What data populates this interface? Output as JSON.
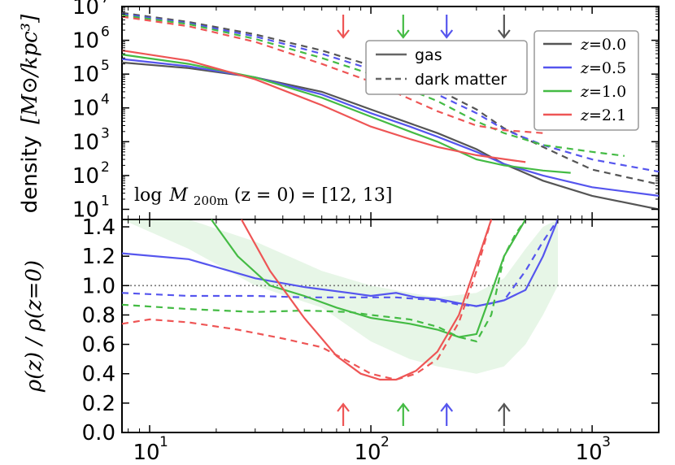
{
  "chart_data": [
    {
      "type": "line",
      "panel": "top",
      "ylabel_prefix": "density",
      "ylabel_unit": "[M⊙/kpc³]",
      "xscale": "log",
      "yscale": "log",
      "xlim": [
        7.5,
        2000
      ],
      "ylim": [
        5,
        10000000
      ],
      "yticks": [
        {
          "value": 10,
          "base": "10",
          "exp": "1"
        },
        {
          "value": 100,
          "base": "10",
          "exp": "2"
        },
        {
          "value": 1000,
          "base": "10",
          "exp": "3"
        },
        {
          "value": 10000,
          "base": "10",
          "exp": "4"
        },
        {
          "value": 100000,
          "base": "10",
          "exp": "5"
        },
        {
          "value": 1000000,
          "base": "10",
          "exp": "6"
        },
        {
          "value": 10000000,
          "base": "10",
          "exp": "7"
        }
      ],
      "annotation": "log M200m(z=0) = [12,13]",
      "annotation_parts": {
        "pre": "log",
        "M": "M",
        "sub": "200m",
        "post": "(z = 0) = [12, 13]"
      },
      "style_legend": [
        {
          "label": "gas",
          "style": "solid"
        },
        {
          "label": "dark matter",
          "style": "dashed"
        }
      ],
      "series": [
        {
          "name": "z=0.0 gas",
          "color": "#555555",
          "style": "solid",
          "x": [
            7.5,
            15,
            30,
            60,
            100,
            150,
            200,
            300,
            400,
            600,
            1000,
            2000
          ],
          "y": [
            220000,
            150000,
            80000,
            30000,
            9000,
            3500,
            1800,
            600,
            220,
            70,
            25,
            10
          ]
        },
        {
          "name": "z=0.5 gas",
          "color": "#5555ee",
          "style": "solid",
          "x": [
            7.5,
            15,
            30,
            60,
            100,
            150,
            200,
            300,
            400,
            600,
            1000,
            2000
          ],
          "y": [
            280000,
            170000,
            80000,
            25000,
            7000,
            2800,
            1400,
            500,
            220,
            100,
            45,
            25
          ]
        },
        {
          "name": "z=1.0 gas",
          "color": "#44bb44",
          "style": "solid",
          "x": [
            7.5,
            15,
            30,
            60,
            100,
            150,
            200,
            300,
            400,
            600,
            800
          ],
          "y": [
            380000,
            200000,
            80000,
            20000,
            5500,
            2000,
            1000,
            300,
            200,
            140,
            120
          ]
        },
        {
          "name": "z=2.1 gas",
          "color": "#ee5555",
          "style": "solid",
          "x": [
            7.5,
            15,
            30,
            60,
            100,
            150,
            200,
            300,
            500
          ],
          "y": [
            500000,
            250000,
            70000,
            12000,
            2800,
            1200,
            700,
            400,
            250
          ]
        },
        {
          "name": "z=0.0 dark matter",
          "color": "#555555",
          "style": "dashed",
          "x": [
            7.5,
            15,
            30,
            60,
            100,
            200,
            300,
            400,
            600,
            1000,
            2000
          ],
          "y": [
            6500000,
            3500000,
            1500000,
            500000,
            180000,
            35000,
            9000,
            2500,
            700,
            150,
            55
          ]
        },
        {
          "name": "z=0.5 dark matter",
          "color": "#5555ee",
          "style": "dashed",
          "x": [
            7.5,
            15,
            30,
            60,
            100,
            200,
            300,
            400,
            600,
            1000,
            2000
          ],
          "y": [
            6000000,
            3200000,
            1300000,
            400000,
            140000,
            25000,
            7000,
            2300,
            800,
            300,
            130
          ]
        },
        {
          "name": "z=1.0 dark matter",
          "color": "#44bb44",
          "style": "dashed",
          "x": [
            7.5,
            15,
            30,
            60,
            100,
            200,
            300,
            400,
            600,
            1000,
            1400
          ],
          "y": [
            5500000,
            3000000,
            1100000,
            300000,
            100000,
            16000,
            4000,
            1800,
            800,
            500,
            380
          ]
        },
        {
          "name": "z=2.1 dark matter",
          "color": "#ee5555",
          "style": "dashed",
          "x": [
            7.5,
            15,
            30,
            60,
            100,
            200,
            300,
            400,
            600
          ],
          "y": [
            5000000,
            2600000,
            900000,
            200000,
            60000,
            8000,
            3000,
            2200,
            1800
          ]
        }
      ],
      "arrows": [
        {
          "color": "#ee5555",
          "x": 75
        },
        {
          "color": "#44bb44",
          "x": 140
        },
        {
          "color": "#5555ee",
          "x": 220
        },
        {
          "color": "#555555",
          "x": 400
        }
      ],
      "legend": [
        {
          "label_var": "z",
          "label_val": "0.0",
          "color": "#555555"
        },
        {
          "label_var": "z",
          "label_val": "0.5",
          "color": "#5555ee"
        },
        {
          "label_var": "z",
          "label_val": "1.0",
          "color": "#44bb44"
        },
        {
          "label_var": "z",
          "label_val": "2.1",
          "color": "#ee5555"
        }
      ]
    },
    {
      "type": "line",
      "panel": "bottom",
      "ylabel": "ρ(z) / ρ(z=0)",
      "xscale": "log",
      "xlim": [
        7.5,
        2000
      ],
      "ylim": [
        0.0,
        1.45
      ],
      "yticks": [
        "0.0",
        "0.2",
        "0.4",
        "0.6",
        "0.8",
        "1.0",
        "1.2",
        "1.4"
      ],
      "xticks": [
        {
          "value": 10,
          "base": "10",
          "exp": "1"
        },
        {
          "value": 100,
          "base": "10",
          "exp": "2"
        },
        {
          "value": 1000,
          "base": "10",
          "exp": "3"
        }
      ],
      "reference_line": 1.0,
      "band": {
        "color": "#44bb44",
        "x": [
          7.5,
          15,
          30,
          60,
          100,
          150,
          200,
          300,
          400,
          500,
          600,
          700
        ],
        "lower": [
          1.45,
          1.25,
          1.0,
          0.85,
          0.62,
          0.5,
          0.45,
          0.4,
          0.45,
          0.6,
          0.8,
          1.0
        ],
        "upper": [
          1.45,
          1.45,
          1.3,
          1.1,
          1.0,
          0.95,
          0.92,
          0.95,
          1.05,
          1.25,
          1.4,
          1.45
        ]
      },
      "series": [
        {
          "name": "z=0.5 gas",
          "color": "#5555ee",
          "style": "solid",
          "x": [
            7.5,
            15,
            30,
            50,
            80,
            100,
            130,
            160,
            200,
            250,
            300,
            350,
            400,
            500,
            600,
            700
          ],
          "y": [
            1.22,
            1.18,
            1.05,
            0.99,
            0.95,
            0.93,
            0.95,
            0.92,
            0.91,
            0.88,
            0.86,
            0.88,
            0.9,
            0.97,
            1.2,
            1.45
          ]
        },
        {
          "name": "z=0.5 dark matter",
          "color": "#5555ee",
          "style": "dashed",
          "x": [
            7.5,
            15,
            30,
            50,
            80,
            100,
            130,
            160,
            200,
            250,
            300,
            350,
            400,
            500,
            600,
            700
          ],
          "y": [
            0.95,
            0.93,
            0.93,
            0.92,
            0.92,
            0.92,
            0.92,
            0.91,
            0.9,
            0.87,
            0.86,
            0.88,
            0.9,
            1.1,
            1.3,
            1.45
          ]
        },
        {
          "name": "z=1.0 gas",
          "color": "#44bb44",
          "style": "solid",
          "x": [
            19,
            25,
            35,
            50,
            70,
            100,
            150,
            200,
            250,
            300,
            350,
            400,
            500
          ],
          "y": [
            1.45,
            1.2,
            1.0,
            0.93,
            0.85,
            0.78,
            0.74,
            0.7,
            0.65,
            0.67,
            0.95,
            1.2,
            1.45
          ]
        },
        {
          "name": "z=1.0 dark matter",
          "color": "#44bb44",
          "style": "dashed",
          "x": [
            7.5,
            15,
            30,
            50,
            80,
            100,
            150,
            200,
            250,
            300,
            350,
            400,
            450,
            500
          ],
          "y": [
            0.87,
            0.84,
            0.82,
            0.83,
            0.82,
            0.8,
            0.77,
            0.72,
            0.65,
            0.62,
            0.8,
            1.2,
            1.35,
            1.45
          ]
        },
        {
          "name": "z=2.1 gas",
          "color": "#ee5555",
          "style": "solid",
          "x": [
            26,
            35,
            50,
            70,
            90,
            110,
            130,
            160,
            200,
            250,
            300,
            350
          ],
          "y": [
            1.45,
            1.1,
            0.78,
            0.52,
            0.4,
            0.36,
            0.36,
            0.42,
            0.55,
            0.8,
            1.15,
            1.45
          ]
        },
        {
          "name": "z=2.1 dark matter",
          "color": "#ee5555",
          "style": "dashed",
          "x": [
            7.5,
            10,
            15,
            25,
            40,
            60,
            80,
            100,
            130,
            160,
            200,
            250,
            300,
            350
          ],
          "y": [
            0.74,
            0.77,
            0.75,
            0.7,
            0.64,
            0.58,
            0.48,
            0.4,
            0.36,
            0.4,
            0.5,
            0.75,
            1.1,
            1.45
          ]
        }
      ],
      "arrows": [
        {
          "color": "#ee5555",
          "x": 75
        },
        {
          "color": "#44bb44",
          "x": 140
        },
        {
          "color": "#5555ee",
          "x": 220
        },
        {
          "color": "#555555",
          "x": 400
        }
      ]
    }
  ]
}
